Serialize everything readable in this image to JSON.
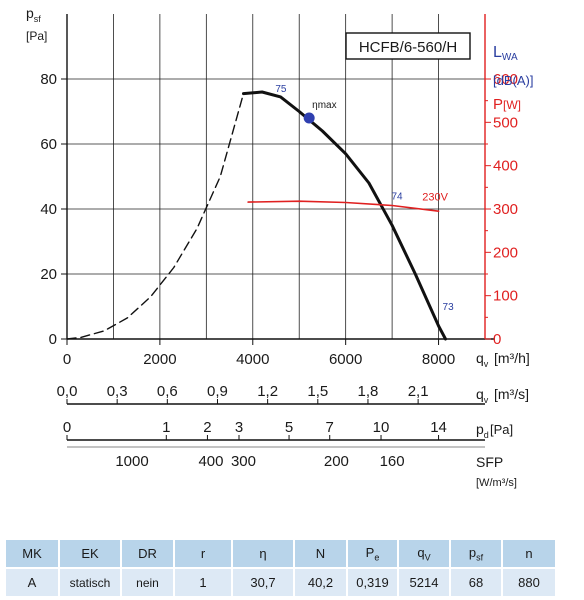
{
  "chart_data": {
    "type": "line",
    "model_label": "HCFB/6-560/H",
    "left_axis": {
      "label": "p",
      "label_sub": "sf",
      "unit": "[Pa]",
      "ylim": [
        0,
        100
      ],
      "ticks": [
        0,
        20,
        40,
        60,
        80
      ]
    },
    "right_axis": {
      "lwa_label": "L",
      "lwa_sub": "WA",
      "lwa_unit": "[dB(A)]",
      "p_label": "P",
      "p_unit": "[W]",
      "ylim": [
        0,
        750
      ],
      "ticks": [
        0,
        100,
        200,
        300,
        400,
        500,
        600
      ]
    },
    "x_axis": {
      "label": "q",
      "label_sub": "v",
      "unit": "[m³/h]",
      "xlim": [
        0,
        9000
      ],
      "ticks": [
        0,
        2000,
        4000,
        6000,
        8000
      ]
    },
    "scale_m3s": {
      "label": "q",
      "label_sub": "v",
      "unit": "[m³/s]",
      "ticks": [
        "0,0",
        "0,3",
        "0,6",
        "0,9",
        "1,2",
        "1,5",
        "1,8",
        "2,1"
      ],
      "values": [
        0,
        0.3,
        0.6,
        0.9,
        1.2,
        1.5,
        1.8,
        2.1
      ]
    },
    "scale_pd": {
      "label": "p",
      "label_sub": "d",
      "unit": "[Pa]",
      "ticks": [
        "0",
        "1",
        "2",
        "3",
        "5",
        "7",
        "10",
        "14"
      ],
      "values": [
        0,
        1,
        2,
        3,
        5,
        7,
        10,
        14
      ]
    },
    "scale_sfp": {
      "label": "SFP",
      "unit": "[W/m³/s]",
      "ticks": [
        "1000",
        "400",
        "300",
        "200",
        "160"
      ],
      "values": [
        1000,
        400,
        300,
        200,
        160
      ]
    },
    "series": [
      {
        "name": "p_sf unstable",
        "style": "dashed",
        "color": "#111111",
        "x": [
          0,
          300,
          800,
          1300,
          1800,
          2300,
          2800,
          3300,
          3800
        ],
        "y": [
          0,
          0.5,
          2.5,
          6.5,
          13,
          22,
          34,
          50,
          75.5
        ]
      },
      {
        "name": "p_sf",
        "style": "solid",
        "color": "#111111",
        "x": [
          3800,
          4200,
          4600,
          5000,
          5500,
          6000,
          6500,
          7000,
          7500,
          8000,
          8150
        ],
        "y": [
          75.5,
          76,
          74.5,
          70,
          64,
          57,
          48,
          35,
          20,
          4,
          0
        ]
      },
      {
        "name": "230V",
        "style": "solid",
        "color": "#e02020",
        "axis": "right",
        "x": [
          3900,
          5000,
          6000,
          7000,
          8000
        ],
        "y": [
          316,
          318,
          315,
          308,
          295
        ]
      }
    ],
    "sound_labels": [
      {
        "text": "75",
        "x": 4400,
        "y": 76
      },
      {
        "text": "74",
        "x": 6900,
        "y": 43
      },
      {
        "text": "73",
        "x": 8000,
        "y": 9
      }
    ],
    "eta_max": {
      "label": "ηmax",
      "x": 5214,
      "y": 68
    }
  },
  "colors": {
    "red": "#e02020",
    "blue": "#2a3ea0",
    "curve": "#111111",
    "header_bg": "#b8d4ea",
    "value_bg": "#dde9f5"
  },
  "table": {
    "headers": [
      "MK",
      "EK",
      "DR",
      "r",
      "η",
      "N",
      "Pe",
      "qV",
      "psf",
      "n"
    ],
    "values": [
      "A",
      "statisch",
      "nein",
      "1",
      "30,7",
      "40,2",
      "0,319",
      "5214",
      "68",
      "880"
    ]
  }
}
